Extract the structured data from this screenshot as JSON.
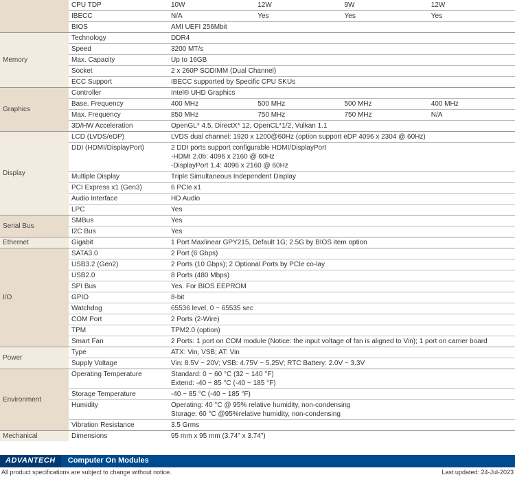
{
  "colors": {
    "cat_bg": "#e8dccc",
    "cat_bg_alt": "#f2ebe0",
    "border": "#999999",
    "row_border": "#bbbbbb",
    "footer_logo_bg": "#003a70",
    "footer_title_bg": "#004a8f",
    "footer_text": "#ffffff"
  },
  "fonts": {
    "base_size": 10,
    "footer_size": 11,
    "notes_size": 9
  },
  "top_rows": [
    {
      "label": "CPU TDP",
      "cols": [
        "10W",
        "12W",
        "9W",
        "12W"
      ]
    },
    {
      "label": "IBECC",
      "cols": [
        "N/A",
        "Yes",
        "Yes",
        "Yes"
      ]
    },
    {
      "label": "BIOS",
      "value": "AMI UEFI 256Mbit"
    }
  ],
  "memory": {
    "name": "Memory",
    "rows": [
      {
        "label": "Technology",
        "value": "DDR4"
      },
      {
        "label": "Speed",
        "value": "3200 MT/s"
      },
      {
        "label": "Max. Capacity",
        "value": "Up to 16GB"
      },
      {
        "label": "Socket",
        "value": "2 x 260P SODIMM (Dual Channel)"
      },
      {
        "label": "ECC Support",
        "value": "IBECC supported by Specific CPU SKUs"
      }
    ]
  },
  "graphics": {
    "name": "Graphics",
    "rows": [
      {
        "label": "Controller",
        "value": "Intel® UHD Graphics"
      },
      {
        "label": "Base. Frequency",
        "cols": [
          "400 MHz",
          "500 MHz",
          "500 MHz",
          "400 MHz"
        ]
      },
      {
        "label": "Max. Frequency",
        "cols": [
          "850 MHz",
          "750 MHz",
          "750 MHz",
          "N/A"
        ]
      },
      {
        "label": "3D/HW Acceleration",
        "value": "OpenGL* 4.5, DirectX* 12, OpenCL*1/2, Vulkan 1.1"
      }
    ]
  },
  "display": {
    "name": "Display",
    "rows": [
      {
        "label": "LCD (LVDS/eDP)",
        "value": "LVDS dual channel: 1920 x 1200@60Hz (option support eDP 4096 x 2304 @ 60Hz)"
      },
      {
        "label": "DDI (HDMI/DisplayPort)",
        "lines": [
          "2 DDI ports support configurable HDMI/DisplayPort",
          "-HDMI 2.0b: 4096 x 2160 @ 60Hz",
          "-DisplayPort 1.4: 4096 x 2160 @ 60Hz"
        ]
      },
      {
        "label": "Multiple Display",
        "value": "Triple Simultaneous Independent Display"
      },
      {
        "label": "PCI Express x1 (Gen3)",
        "value": "6 PCIe x1"
      },
      {
        "label": "Audio Interface",
        "value": "HD Audio"
      },
      {
        "label": "LPC",
        "value": "Yes"
      }
    ]
  },
  "serial": {
    "name": "Serial Bus",
    "rows": [
      {
        "label": "SMBus",
        "value": "Yes"
      },
      {
        "label": "I2C Bus",
        "value": "Yes"
      }
    ]
  },
  "ethernet": {
    "name": "Ethernet",
    "rows": [
      {
        "label": "Gigabit",
        "value": "1 Port Maxlinear GPY215, Default 1G; 2.5G by BIOS item option"
      }
    ]
  },
  "io": {
    "name": "I/O",
    "rows": [
      {
        "label": "SATA3.0",
        "value": "2 Port (6 Gbps)"
      },
      {
        "label": "USB3.2 (Gen2)",
        "value": "2 Ports (10 Gbps); 2 Optional Ports by PCIe co-lay"
      },
      {
        "label": "USB2.0",
        "value": "8 Ports (480 Mbps)"
      },
      {
        "label": "SPI Bus",
        "value": "Yes. For BIOS EEPROM"
      },
      {
        "label": "GPIO",
        "value": "8-bit"
      },
      {
        "label": "Watchdog",
        "value": "65536 level, 0 ~ 65535 sec"
      },
      {
        "label": "COM Port",
        "value": "2 Ports (2-Wire)"
      },
      {
        "label": "TPM",
        "value": "TPM2.0 (option)"
      },
      {
        "label": "Smart Fan",
        "value": "2 Ports: 1 port on COM module (Notice: the input voltage of fan is aligned to Vin); 1 port on carrier board"
      }
    ]
  },
  "power": {
    "name": "Power",
    "rows": [
      {
        "label": "Type",
        "value": "ATX: Vin, VSB; AT: Vin"
      },
      {
        "label": "Supply Voltage",
        "value": "Vin: 8.5V ~ 20V; VSB: 4.75V ~ 5.25V; RTC Battery: 2.0V ~ 3.3V"
      }
    ]
  },
  "environment": {
    "name": "Environment",
    "rows": [
      {
        "label": "Operating Temperature",
        "lines": [
          "Standard: 0 ~ 60 °C (32 ~ 140 °F)",
          "Extend: -40 ~ 85 °C (-40 ~ 185 °F)"
        ]
      },
      {
        "label": "Storage Temperature",
        "value": "-40 ~ 85 °C (-40 ~ 185 °F)"
      },
      {
        "label": "Humidity",
        "lines": [
          "Operating: 40 °C @ 95% relative humidity, non-condensing",
          "Storage: 60 °C @95%relative humidity, non-condensing"
        ]
      },
      {
        "label": "Vibration Resistance",
        "value": "3.5 Grms"
      }
    ]
  },
  "mechanical": {
    "name": "Mechanical",
    "rows": [
      {
        "label": "Dimensions",
        "value": "95 mm x 95 mm (3.74\" x 3.74\")"
      }
    ]
  },
  "footer": {
    "logo": "ADVANTECH",
    "title": "Computer On Modules",
    "left_note": "All product specifications are subject to change without notice.",
    "right_note": "Last updated: 24-Jul-2023"
  }
}
